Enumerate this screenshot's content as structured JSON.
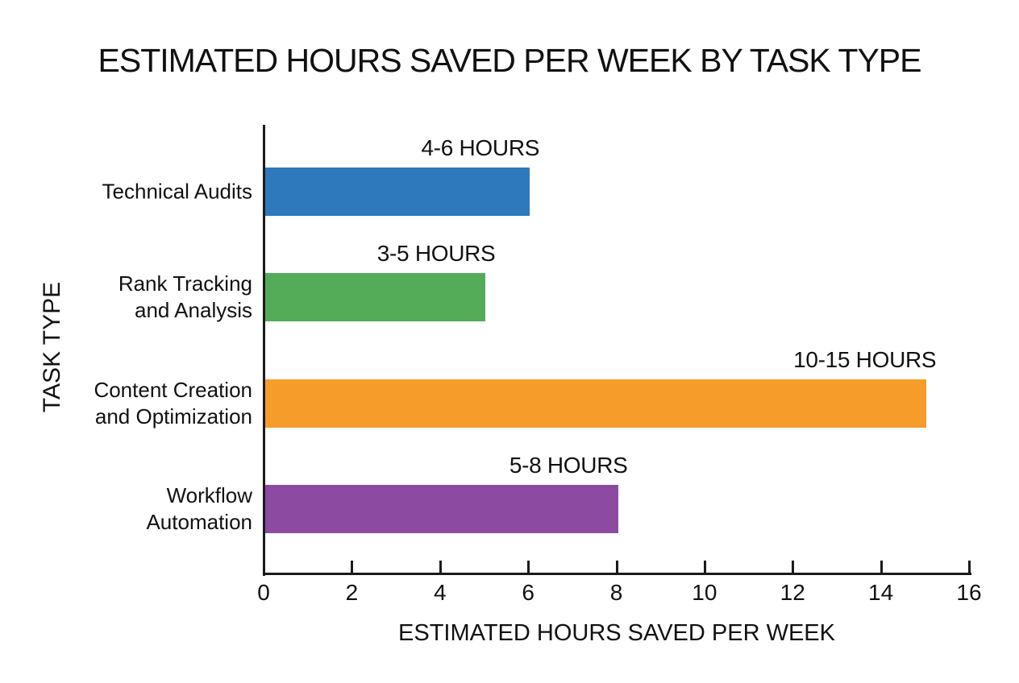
{
  "title": "ESTIMATED HOURS SAVED PER WEEK BY TASK TYPE",
  "chart_data": {
    "type": "bar",
    "orientation": "horizontal",
    "title": "ESTIMATED HOURS SAVED PER WEEK BY TASK TYPE",
    "xlabel": "ESTIMATED HOURS SAVED PER WEEK",
    "ylabel": "TASK TYPE",
    "xlim": [
      0,
      16
    ],
    "xticks": [
      0,
      2,
      4,
      6,
      8,
      10,
      12,
      14,
      16
    ],
    "grid": false,
    "legend": false,
    "categories": [
      "Technical Audits",
      "Rank Tracking and Analysis",
      "Content Creation and Optimization",
      "Workflow Automation"
    ],
    "bars": [
      {
        "category": "Technical Audits",
        "category_lines": [
          "Technical Audits"
        ],
        "value": 6,
        "range_label": "4-6 HOURS",
        "color": "#2E79BC"
      },
      {
        "category": "Rank Tracking and Analysis",
        "category_lines": [
          "Rank Tracking",
          "and Analysis"
        ],
        "value": 5,
        "range_label": "3-5 HOURS",
        "color": "#55AC58"
      },
      {
        "category": "Content Creation and Optimization",
        "category_lines": [
          "Content Creation",
          "and Optimization"
        ],
        "value": 15,
        "range_label": "10-15 HOURS",
        "color": "#F59C2B"
      },
      {
        "category": "Workflow Automation",
        "category_lines": [
          "Workflow",
          "Automation"
        ],
        "value": 8,
        "range_label": "5-8 HOURS",
        "color": "#8C4BA1"
      }
    ]
  },
  "colors": {
    "axis": "#1b1b1b",
    "text": "#111111",
    "background": "#ffffff"
  }
}
